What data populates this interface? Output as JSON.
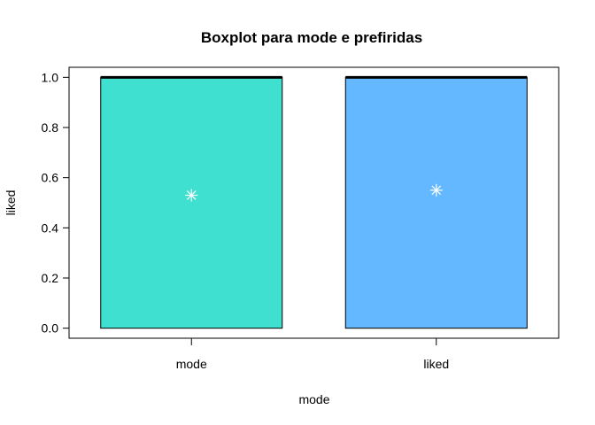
{
  "chart_data": {
    "type": "boxplot",
    "title": "Boxplot para  mode e prefiridas",
    "xlabel": "mode",
    "ylabel": "liked",
    "ylim": [
      -0.04,
      1.04
    ],
    "yticks": [
      0.0,
      0.2,
      0.4,
      0.6,
      0.8,
      1.0
    ],
    "ytick_labels": [
      "0.0",
      "0.2",
      "0.4",
      "0.6",
      "0.8",
      "1.0"
    ],
    "categories": [
      "mode",
      "liked"
    ],
    "boxes": [
      {
        "name": "mode",
        "min": 0,
        "q1": 0,
        "median": 1,
        "q3": 1,
        "max": 1,
        "mean": 0.53,
        "color": "#40E0D0"
      },
      {
        "name": "liked",
        "min": 0,
        "q1": 0,
        "median": 1,
        "q3": 1,
        "max": 1,
        "mean": 0.55,
        "color": "#63B8FF"
      }
    ],
    "mean_marker_color": "#ffffff"
  }
}
